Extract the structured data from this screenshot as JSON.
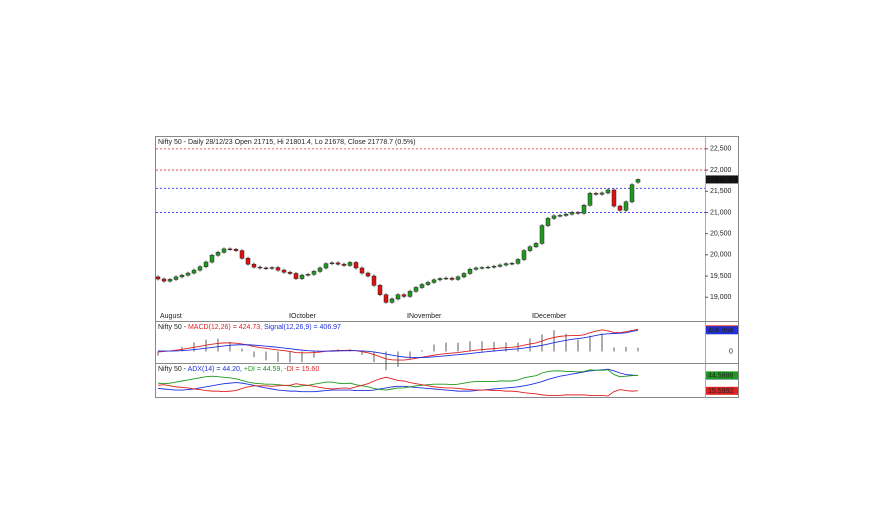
{
  "chart_data": [
    {
      "type": "candlestick",
      "title": "Nifty 50 - Daily 28/12/23 Open 21715, Hi 21801.4, Lo 21678, Close 21778.7 (0.5%)",
      "open": [
        19480,
        19430,
        19380,
        19420,
        19480,
        19520,
        19570,
        19640,
        19720,
        19830,
        19990,
        20060,
        20140,
        20130,
        20100,
        19920,
        19780,
        19710,
        19690,
        19680,
        19700,
        19640,
        19590,
        19560,
        19440,
        19520,
        19540,
        19610,
        19690,
        19790,
        19810,
        19780,
        19750,
        19820,
        19690,
        19570,
        19500,
        19280,
        19060,
        18880,
        18960,
        19060,
        19020,
        19140,
        19230,
        19300,
        19350,
        19410,
        19440,
        19450,
        19420,
        19480,
        19560,
        19660,
        19690,
        19700,
        19710,
        19730,
        19760,
        19790,
        19800,
        19890,
        20100,
        20190,
        20270,
        20690,
        20860,
        20920,
        20930,
        20960,
        21000,
        20980,
        21170,
        21450,
        21430,
        21460,
        21530,
        21150,
        21050,
        21250,
        21715
      ],
      "high": [
        19515,
        19465,
        19455,
        19515,
        19555,
        19605,
        19675,
        19755,
        19865,
        20025,
        20095,
        20175,
        20175,
        20165,
        20135,
        19955,
        19815,
        19745,
        19725,
        19735,
        19735,
        19675,
        19625,
        19595,
        19555,
        19575,
        19645,
        19725,
        19825,
        19845,
        19845,
        19815,
        19855,
        19855,
        19725,
        19605,
        19535,
        19315,
        19095,
        18995,
        19095,
        19095,
        19175,
        19265,
        19335,
        19385,
        19445,
        19475,
        19485,
        19485,
        19515,
        19595,
        19695,
        19725,
        19735,
        19745,
        19765,
        19795,
        19825,
        19835,
        19925,
        20135,
        20225,
        20305,
        20725,
        20895,
        20955,
        20965,
        20995,
        21035,
        21035,
        21205,
        21485,
        21485,
        21495,
        21565,
        21565,
        21185,
        21285,
        21689,
        21801.4
      ],
      "low": [
        19395,
        19345,
        19345,
        19385,
        19445,
        19485,
        19535,
        19605,
        19685,
        19795,
        19955,
        20025,
        20095,
        20065,
        19885,
        19745,
        19675,
        19655,
        19645,
        19645,
        19605,
        19555,
        19525,
        19405,
        19405,
        19485,
        19505,
        19575,
        19655,
        19755,
        19745,
        19715,
        19715,
        19655,
        19535,
        19465,
        19245,
        19025,
        18845,
        18845,
        18925,
        18985,
        18985,
        19105,
        19195,
        19265,
        19315,
        19375,
        19405,
        19385,
        19385,
        19445,
        19525,
        19625,
        19655,
        19665,
        19675,
        19695,
        19725,
        19755,
        19765,
        19855,
        20065,
        20155,
        20235,
        20655,
        20825,
        20885,
        20895,
        20925,
        20945,
        20945,
        21135,
        21395,
        21395,
        21425,
        21115,
        21015,
        21015,
        21215,
        21678
      ],
      "close": [
        19430,
        19380,
        19420,
        19480,
        19520,
        19570,
        19640,
        19720,
        19830,
        19990,
        20060,
        20140,
        20130,
        20100,
        19920,
        19780,
        19710,
        19690,
        19680,
        19700,
        19640,
        19590,
        19560,
        19440,
        19520,
        19540,
        19610,
        19690,
        19790,
        19810,
        19780,
        19750,
        19820,
        19690,
        19570,
        19500,
        19280,
        19060,
        18880,
        18960,
        19060,
        19020,
        19140,
        19230,
        19300,
        19350,
        19410,
        19440,
        19450,
        19420,
        19480,
        19560,
        19660,
        19690,
        19700,
        19710,
        19730,
        19760,
        19790,
        19800,
        19890,
        20100,
        20190,
        20270,
        20690,
        20860,
        20920,
        20930,
        20960,
        21000,
        20980,
        21170,
        21450,
        21430,
        21460,
        21530,
        21150,
        21050,
        21250,
        21654,
        21778.7
      ],
      "up_color": "#1f9a1f",
      "down_color": "#e01010",
      "ylim": [
        18510,
        22780
      ],
      "yticks": [
        {
          "value": 19000,
          "label": "19,000"
        },
        {
          "value": 19500,
          "label": "19,500"
        },
        {
          "value": 20000,
          "label": "20,000"
        },
        {
          "value": 20500,
          "label": "20,500"
        },
        {
          "value": 21000,
          "label": "21,000"
        },
        {
          "value": 21500,
          "label": "21,500"
        },
        {
          "value": 22000,
          "label": "22,000"
        },
        {
          "value": 22500,
          "label": "22,500"
        }
      ],
      "levels": [
        {
          "value": 22500,
          "color": "#e03030"
        },
        {
          "value": 22000,
          "color": "#e03030"
        },
        {
          "value": 21570,
          "color": "#3030e0"
        },
        {
          "value": 21000,
          "color": "#3030e0"
        }
      ],
      "last_price": {
        "value": 21778.7,
        "label": "21,778.7"
      },
      "month_labels": [
        "August",
        "October",
        "November",
        "December"
      ]
    },
    {
      "type": "line",
      "title": "Nifty 50 - ",
      "ylim": [
        -202,
        566
      ],
      "yticks": [
        0
      ],
      "series": [
        {
          "name": "MACD(12,26) = 424.73,",
          "color": "#e02020",
          "end_value": 424.731,
          "values": [
            -10,
            0,
            10,
            25,
            40,
            60,
            80,
            100,
            120,
            140,
            155,
            165,
            165,
            160,
            145,
            120,
            95,
            75,
            60,
            45,
            30,
            15,
            0,
            -20,
            -25,
            -25,
            -20,
            -10,
            5,
            15,
            20,
            20,
            25,
            15,
            -5,
            -25,
            -60,
            -100,
            -140,
            -160,
            -165,
            -165,
            -150,
            -130,
            -110,
            -90,
            -70,
            -55,
            -40,
            -30,
            -20,
            -5,
            10,
            25,
            35,
            45,
            55,
            65,
            75,
            80,
            95,
            120,
            145,
            165,
            200,
            240,
            270,
            290,
            300,
            305,
            305,
            320,
            360,
            390,
            415,
            395,
            365,
            360,
            380,
            405,
            424.73
          ]
        },
        {
          "name": "Signal(12,26,9) = 406.97",
          "color": "#2030e0",
          "end_value": 406.968,
          "values": [
            10,
            8,
            8,
            11,
            17,
            25,
            36,
            49,
            63,
            78,
            93,
            107,
            119,
            127,
            131,
            129,
            122,
            113,
            102,
            91,
            79,
            66,
            53,
            38,
            26,
            16,
            9,
            5,
            5,
            7,
            10,
            12,
            15,
            15,
            11,
            4,
            -9,
            -27,
            -50,
            -72,
            -91,
            -106,
            -115,
            -118,
            -116,
            -111,
            -103,
            -93,
            -83,
            -72,
            -62,
            -51,
            -39,
            -26,
            -14,
            -2,
            9,
            20,
            31,
            41,
            52,
            66,
            82,
            98,
            118,
            143,
            168,
            193,
            215,
            233,
            248,
            262,
            284,
            308,
            330,
            340,
            345,
            350,
            358,
            385,
            406.97
          ]
        }
      ]
    },
    {
      "type": "line",
      "title": "Nifty 50 - ",
      "ylim": [
        4,
        64
      ],
      "series": [
        {
          "name": "ADX(14) = 44.20,",
          "color": "#2030e0",
          "end_value": 44.2023,
          "values": [
            20,
            19,
            18,
            17,
            17,
            18,
            19,
            21,
            23,
            25,
            27,
            29,
            30,
            31,
            30,
            28,
            26,
            23,
            21,
            19,
            17,
            16,
            15,
            15,
            14,
            14,
            14,
            15,
            16,
            17,
            17,
            17,
            17,
            16,
            16,
            16,
            17,
            19,
            21,
            23,
            24,
            24,
            23,
            22,
            21,
            20,
            19,
            18,
            17,
            16,
            15,
            15,
            15,
            16,
            17,
            18,
            19,
            20,
            21,
            22,
            23,
            25,
            27,
            30,
            33,
            37,
            40,
            43,
            45,
            47,
            49,
            51,
            53,
            54,
            55,
            56,
            53,
            49,
            46,
            45,
            44.2
          ]
        },
        {
          "name": "+DI = 44.59,",
          "color": "#1f9a1f",
          "end_value": 44.5888,
          "values": [
            30,
            29,
            30,
            32,
            34,
            36,
            38,
            40,
            42,
            43,
            42,
            41,
            40,
            38,
            35,
            32,
            30,
            29,
            28,
            28,
            27,
            26,
            25,
            23,
            25,
            26,
            28,
            30,
            32,
            32,
            30,
            29,
            30,
            27,
            25,
            23,
            20,
            18,
            17,
            19,
            21,
            21,
            23,
            25,
            26,
            27,
            28,
            28,
            28,
            27,
            28,
            30,
            32,
            33,
            33,
            33,
            33,
            34,
            34,
            34,
            36,
            40,
            42,
            44,
            49,
            52,
            53,
            53,
            52,
            52,
            51,
            52,
            55,
            54,
            54,
            55,
            46,
            42,
            43,
            44,
            44.59
          ]
        },
        {
          "name": "-DI = 15.60",
          "color": "#e02020",
          "end_value": 15.5992,
          "values": [
            26,
            27,
            25,
            23,
            22,
            21,
            19,
            18,
            16,
            15,
            15,
            14,
            15,
            16,
            20,
            23,
            25,
            25,
            25,
            24,
            25,
            26,
            26,
            29,
            27,
            26,
            24,
            22,
            20,
            19,
            20,
            21,
            20,
            23,
            26,
            29,
            34,
            38,
            41,
            38,
            35,
            34,
            31,
            29,
            27,
            25,
            23,
            22,
            21,
            21,
            20,
            19,
            18,
            17,
            17,
            17,
            16,
            16,
            15,
            15,
            14,
            12,
            11,
            10,
            8,
            7,
            7,
            7,
            8,
            8,
            8,
            8,
            7,
            7,
            7,
            6,
            14,
            18,
            16,
            15,
            15.6
          ]
        }
      ]
    }
  ]
}
